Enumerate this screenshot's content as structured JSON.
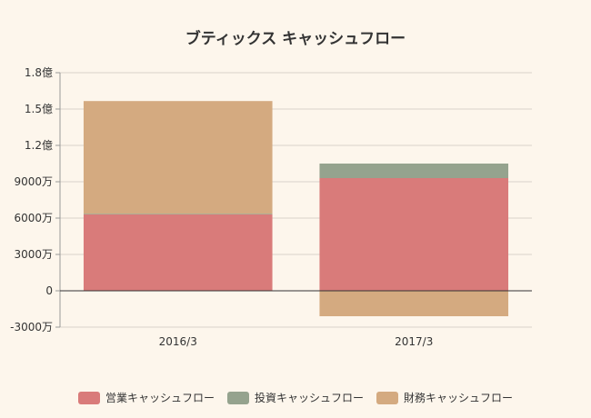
{
  "chart_data": {
    "type": "bar",
    "stacked": true,
    "title": "ブティックス キャッシュフロー",
    "categories": [
      "2016/3",
      "2017/3"
    ],
    "series": [
      {
        "name": "営業キャッシュフロー",
        "values": [
          63000000,
          93000000
        ],
        "color": "#d97b7a"
      },
      {
        "name": "投資キャッシュフロー",
        "values": [
          600000,
          12000000
        ],
        "color": "#95a38e"
      },
      {
        "name": "財務キャッシュフロー",
        "values": [
          93000000,
          -21000000
        ],
        "color": "#d4aa80"
      }
    ],
    "y_ticks": [
      {
        "value": -30000000,
        "label": "-3000万"
      },
      {
        "value": 0,
        "label": "0"
      },
      {
        "value": 30000000,
        "label": "3000万"
      },
      {
        "value": 60000000,
        "label": "6000万"
      },
      {
        "value": 90000000,
        "label": "9000万"
      },
      {
        "value": 120000000,
        "label": "1.2億"
      },
      {
        "value": 150000000,
        "label": "1.5億"
      },
      {
        "value": 180000000,
        "label": "1.8億"
      }
    ],
    "ylim": [
      -30000000,
      180000000
    ],
    "grid": true,
    "legend_position": "bottom"
  }
}
